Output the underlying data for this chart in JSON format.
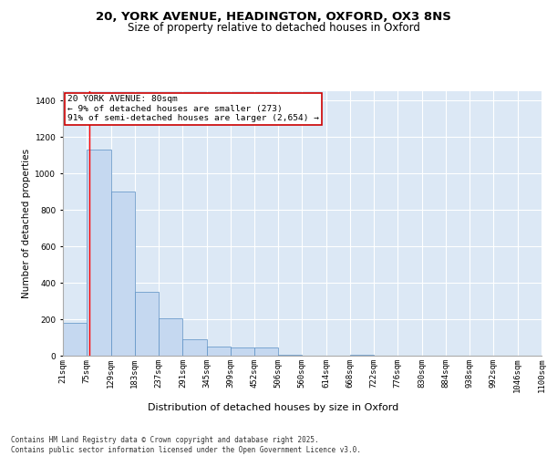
{
  "title_line1": "20, YORK AVENUE, HEADINGTON, OXFORD, OX3 8NS",
  "title_line2": "Size of property relative to detached houses in Oxford",
  "xlabel": "Distribution of detached houses by size in Oxford",
  "ylabel": "Number of detached properties",
  "bar_color": "#c5d8f0",
  "bar_edge_color": "#5a8fc3",
  "background_color": "#dce8f5",
  "grid_color": "#ffffff",
  "annotation_box_color": "#cc0000",
  "annotation_text": "20 YORK AVENUE: 80sqm\n← 9% of detached houses are smaller (273)\n91% of semi-detached houses are larger (2,654) →",
  "red_line_x": 80,
  "categories": [
    "21sqm",
    "75sqm",
    "129sqm",
    "183sqm",
    "237sqm",
    "291sqm",
    "345sqm",
    "399sqm",
    "452sqm",
    "506sqm",
    "560sqm",
    "614sqm",
    "668sqm",
    "722sqm",
    "776sqm",
    "830sqm",
    "884sqm",
    "938sqm",
    "992sqm",
    "1046sqm",
    "1100sqm"
  ],
  "bar_lefts": [
    21,
    75,
    129,
    183,
    237,
    291,
    345,
    399,
    452,
    506,
    560,
    614,
    668,
    722,
    776,
    830,
    884,
    938,
    992,
    1046
  ],
  "bar_widths": [
    54,
    54,
    54,
    54,
    54,
    54,
    54,
    54,
    54,
    54,
    54,
    54,
    54,
    54,
    54,
    54,
    54,
    54,
    54,
    54
  ],
  "bar_heights": [
    180,
    1130,
    900,
    350,
    205,
    90,
    50,
    45,
    45,
    5,
    0,
    0,
    5,
    0,
    0,
    0,
    0,
    0,
    0,
    0
  ],
  "ylim": [
    0,
    1450
  ],
  "xlim": [
    21,
    1100
  ],
  "yticks": [
    0,
    200,
    400,
    600,
    800,
    1000,
    1200,
    1400
  ],
  "footnote": "Contains HM Land Registry data © Crown copyright and database right 2025.\nContains public sector information licensed under the Open Government Licence v3.0.",
  "title_fontsize": 9.5,
  "subtitle_fontsize": 8.5,
  "tick_fontsize": 6.5,
  "xlabel_fontsize": 8,
  "ylabel_fontsize": 7.5,
  "footnote_fontsize": 5.5,
  "annotation_fontsize": 6.8
}
